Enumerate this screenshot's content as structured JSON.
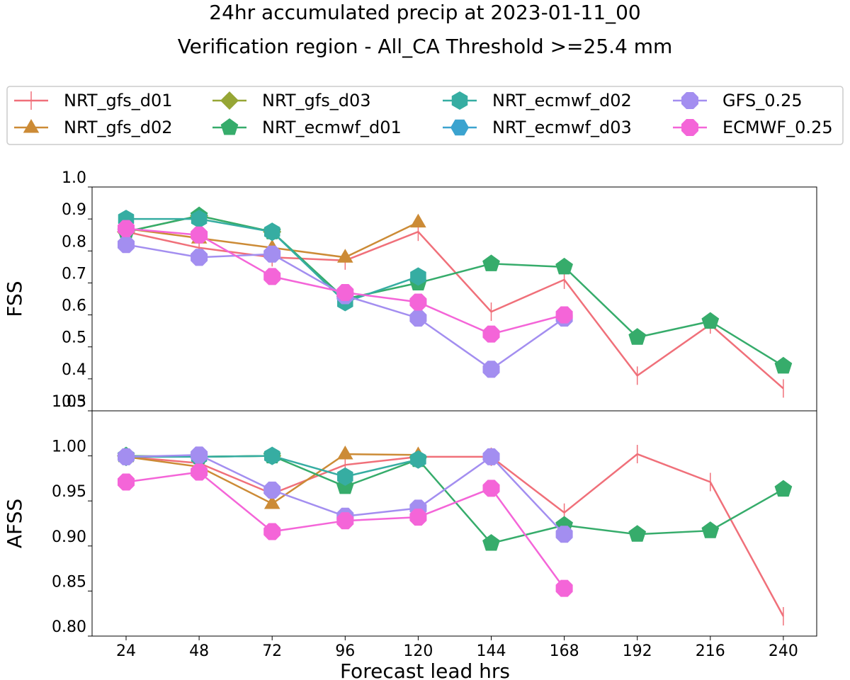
{
  "title_line1": "24hr accumulated precip at 2023-01-11_00",
  "title_line2": "Verification region - All_CA Threshold >=25.4 mm",
  "chart_data": {
    "type": "line",
    "xlabel": "Forecast lead hrs",
    "x": [
      24,
      48,
      72,
      96,
      120,
      144,
      168,
      192,
      216,
      240
    ],
    "xticks": [
      "24",
      "48",
      "72",
      "96",
      "120",
      "144",
      "168",
      "192",
      "216",
      "240"
    ],
    "legend_placement": "top",
    "grid": false,
    "series_styles": [
      {
        "name": "NRT_gfs_d01",
        "color": "#f0707a",
        "marker": "vline"
      },
      {
        "name": "NRT_gfs_d02",
        "color": "#cc8b36",
        "marker": "triangle"
      },
      {
        "name": "NRT_gfs_d03",
        "color": "#96a635",
        "marker": "diamond"
      },
      {
        "name": "NRT_ecmwf_d01",
        "color": "#36ac6b",
        "marker": "pentagon"
      },
      {
        "name": "NRT_ecmwf_d02",
        "color": "#36ada2",
        "marker": "hexagon"
      },
      {
        "name": "NRT_ecmwf_d03",
        "color": "#3ba3cf",
        "marker": "hexagon2"
      },
      {
        "name": "GFS_0.25",
        "color": "#a38ef0",
        "marker": "octagon"
      },
      {
        "name": "ECMWF_0.25",
        "color": "#f465d8",
        "marker": "octagon"
      }
    ],
    "panels": [
      {
        "ylabel": "FSS",
        "ylim": [
          0.3,
          1.0
        ],
        "yticks": [
          "0.3",
          "0.4",
          "0.5",
          "0.6",
          "0.7",
          "0.8",
          "0.9",
          "1.0"
        ],
        "ytick_values": [
          0.3,
          0.4,
          0.5,
          0.6,
          0.7,
          0.8,
          0.9,
          1.0
        ],
        "series": [
          {
            "name": "NRT_gfs_d01",
            "values": [
              0.86,
              0.81,
              0.78,
              0.77,
              0.86,
              0.61,
              0.71,
              0.41,
              0.57,
              0.37
            ]
          },
          {
            "name": "NRT_gfs_d02",
            "values": [
              0.87,
              0.84,
              0.81,
              0.78,
              0.89,
              null,
              null,
              null,
              null,
              null
            ]
          },
          {
            "name": "NRT_gfs_d03",
            "values": [
              0.86,
              0.91,
              0.86,
              null,
              null,
              null,
              null,
              null,
              null,
              null
            ]
          },
          {
            "name": "NRT_ecmwf_d01",
            "values": [
              0.86,
              0.91,
              0.86,
              0.65,
              0.7,
              0.76,
              0.75,
              0.53,
              0.58,
              0.44
            ]
          },
          {
            "name": "NRT_ecmwf_d02",
            "values": [
              0.9,
              0.9,
              0.86,
              0.64,
              0.72,
              null,
              null,
              null,
              null,
              null
            ]
          },
          {
            "name": "NRT_ecmwf_d03",
            "values": [
              null,
              null,
              null,
              null,
              null,
              null,
              null,
              null,
              null,
              null
            ]
          },
          {
            "name": "GFS_0.25",
            "values": [
              0.82,
              0.78,
              0.79,
              0.66,
              0.59,
              0.43,
              0.59,
              null,
              null,
              null
            ]
          },
          {
            "name": "ECMWF_0.25",
            "values": [
              0.87,
              0.85,
              0.72,
              0.67,
              0.64,
              0.54,
              0.6,
              null,
              null,
              null
            ]
          }
        ]
      },
      {
        "ylabel": "AFSS",
        "ylim": [
          0.8,
          1.05
        ],
        "yticks": [
          "0.80",
          "0.85",
          "0.90",
          "0.95",
          "1.00",
          "1.05"
        ],
        "ytick_values": [
          0.8,
          0.85,
          0.9,
          0.95,
          1.0,
          1.05
        ],
        "series": [
          {
            "name": "NRT_gfs_d01",
            "values": [
              0.999,
              0.992,
              0.958,
              0.99,
              0.999,
              0.999,
              0.937,
              1.002,
              0.971,
              0.822
            ]
          },
          {
            "name": "NRT_gfs_d02",
            "values": [
              0.999,
              0.988,
              0.947,
              1.002,
              1.001,
              null,
              null,
              null,
              null,
              null
            ]
          },
          {
            "name": "NRT_gfs_d03",
            "values": [
              1.0,
              0.999,
              1.0,
              null,
              null,
              null,
              null,
              null,
              null,
              null
            ]
          },
          {
            "name": "NRT_ecmwf_d01",
            "values": [
              1.0,
              0.999,
              1.0,
              0.966,
              0.996,
              0.903,
              0.923,
              0.913,
              0.917,
              0.963
            ]
          },
          {
            "name": "NRT_ecmwf_d02",
            "values": [
              0.999,
              0.999,
              1.0,
              0.977,
              0.996,
              null,
              null,
              null,
              null,
              null
            ]
          },
          {
            "name": "NRT_ecmwf_d03",
            "values": [
              null,
              null,
              null,
              null,
              null,
              null,
              null,
              null,
              null,
              null
            ]
          },
          {
            "name": "GFS_0.25",
            "values": [
              0.999,
              1.001,
              0.962,
              0.933,
              0.942,
              0.999,
              0.913,
              null,
              null,
              null
            ]
          },
          {
            "name": "ECMWF_0.25",
            "values": [
              0.971,
              0.982,
              0.916,
              0.928,
              0.932,
              0.964,
              0.853,
              null,
              null,
              null
            ]
          }
        ]
      }
    ]
  }
}
